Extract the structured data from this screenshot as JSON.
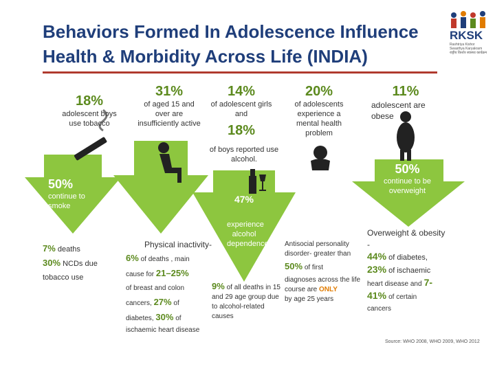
{
  "title_line1": "Behaviors Formed In Adolescence Influence",
  "title_line2": "Health & Morbidity Across Life (INDIA)",
  "logo": {
    "text": "RKSK",
    "sub1": "Rashtriya Kishor",
    "sub2": "Swasthya Karyakram",
    "sub3": "राष्ट्रीय किशोर स्वास्थ्य कार्यक्रम"
  },
  "tobacco": {
    "pct": "18%",
    "desc": "adolescent boys use tobacco",
    "continue_pct": "50%",
    "continue_text": "continue to smoke",
    "deaths_pct": "7%",
    "deaths_text": "deaths",
    "ncd_pct": "30%",
    "ncd_text": "NCDs due",
    "ncd_text2": "tobacco use"
  },
  "activity": {
    "pct": "31%",
    "desc": "of aged 15 and over are insufficiently active",
    "heading": "Physical inactivity-",
    "deaths_pct": "6%",
    "deaths_text": "of deaths , main",
    "cause_pre": "cause for",
    "cause_pct": "21–25%",
    "cause_text": "of breast and colon",
    "cancers": "cancers,",
    "diab_pct": "27%",
    "of": "of",
    "diabetes": "diabetes,",
    "isch_pct": "30%",
    "isch_of": "of",
    "isch_text": "ischaemic heart disease"
  },
  "alcohol": {
    "girls_pct": "14%",
    "girls_desc": "of adolescent girls and",
    "boys_pct": "18%",
    "boys_desc": "of boys reported use alcohol.",
    "continue_pct": "47%",
    "dependence": "experience alcohol dependence",
    "deaths_pct": "9%",
    "deaths_text": "of all deaths in 15 and 29 age group due to alcohol-related causes"
  },
  "mental": {
    "pct": "20%",
    "desc": "of adolescents experience a mental health problem",
    "line1": "Antisocial personality disorder- greater than",
    "first_pct": "50%",
    "first_text": "of first",
    "line3": "diagnoses across the life course are",
    "only": "ONLY",
    "line4": "by age 25 years"
  },
  "obese": {
    "pct": "11%",
    "desc": "adolescent are obese",
    "continue_pct": "50%",
    "continue_text": "continue to be overweight",
    "heading": "Overweight & obesity -",
    "diab_pct": "44%",
    "diab_text": "of diabetes,",
    "isch_pct": "23%",
    "isch_text": "of ischaemic",
    "heart": "heart disease and",
    "canc_pct": "7-41%",
    "canc_text": "of certain",
    "cancers": "cancers"
  },
  "source": "Source: WHO 2008, WHO 2009, WHO 2012",
  "colors": {
    "arrow": "#8dc63f",
    "title": "#1f3e7a",
    "rule": "#b03a2e"
  }
}
